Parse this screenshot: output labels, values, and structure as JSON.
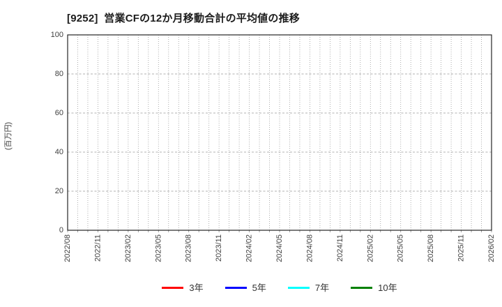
{
  "chart_data": {
    "type": "line",
    "title": "[9252]  営業CFの12か月移動合計の平均値の推移",
    "ylabel": "(百万円)",
    "xlabel": "",
    "ylim": [
      0,
      100
    ],
    "yticks": [
      0,
      20,
      40,
      60,
      80,
      100
    ],
    "x_tick_labels": [
      "2022/08",
      "2022/11",
      "2023/02",
      "2023/05",
      "2023/08",
      "2023/11",
      "2024/02",
      "2024/05",
      "2024/08",
      "2024/11",
      "2025/02",
      "2025/05",
      "2025/08",
      "2025/11",
      "2026/02"
    ],
    "x_label_interval_months": 3,
    "grid": true,
    "legend_position": "bottom",
    "series": [
      {
        "name": "3年",
        "color": "#ff0000",
        "values": []
      },
      {
        "name": "5年",
        "color": "#0000ff",
        "values": []
      },
      {
        "name": "7年",
        "color": "#00ffff",
        "values": []
      },
      {
        "name": "10年",
        "color": "#008000",
        "values": []
      }
    ],
    "colors": {
      "axis_border": "#262626",
      "grid_vertical": "#999999",
      "grid_horizontal": "#b0b0b0",
      "tick_label": "#404040"
    }
  }
}
